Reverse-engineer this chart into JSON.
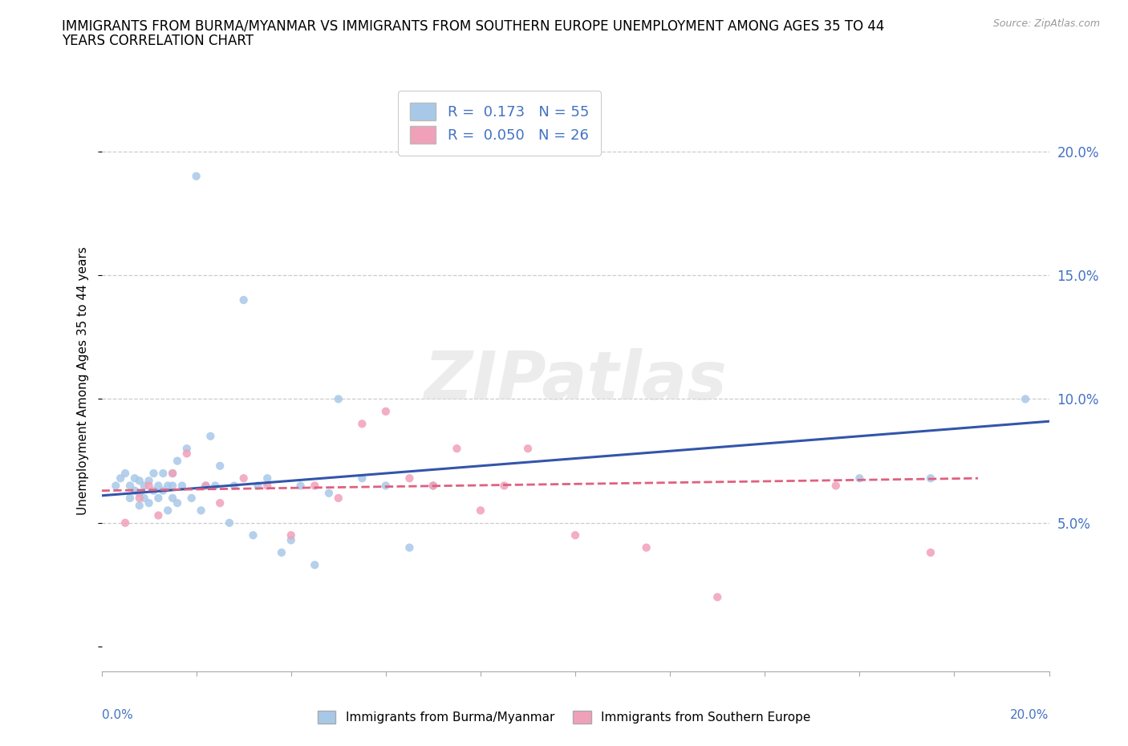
{
  "title_line1": "IMMIGRANTS FROM BURMA/MYANMAR VS IMMIGRANTS FROM SOUTHERN EUROPE UNEMPLOYMENT AMONG AGES 35 TO 44",
  "title_line2": "YEARS CORRELATION CHART",
  "source": "Source: ZipAtlas.com",
  "ylabel": "Unemployment Among Ages 35 to 44 years",
  "yticks_labels": [
    "5.0%",
    "10.0%",
    "15.0%",
    "20.0%"
  ],
  "ytick_vals": [
    0.05,
    0.1,
    0.15,
    0.2
  ],
  "xticks_labels": [
    "0.0%",
    "20.0%"
  ],
  "xlim": [
    0.0,
    0.2
  ],
  "ylim": [
    -0.01,
    0.225
  ],
  "color_blue": "#a8c8e8",
  "color_pink": "#f0a0b8",
  "line_blue": "#3355aa",
  "line_pink": "#e06080",
  "watermark": "ZIPatlas",
  "burma_trend_x0": 0.0,
  "burma_trend_x1": 0.2,
  "burma_trend_y0": 0.061,
  "burma_trend_y1": 0.091,
  "southern_trend_x0": 0.0,
  "southern_trend_x1": 0.185,
  "southern_trend_y0": 0.063,
  "southern_trend_y1": 0.068,
  "burma_x": [
    0.003,
    0.004,
    0.005,
    0.006,
    0.006,
    0.007,
    0.007,
    0.008,
    0.008,
    0.008,
    0.009,
    0.009,
    0.01,
    0.01,
    0.011,
    0.011,
    0.012,
    0.012,
    0.013,
    0.013,
    0.014,
    0.014,
    0.015,
    0.015,
    0.015,
    0.016,
    0.016,
    0.017,
    0.018,
    0.019,
    0.02,
    0.021,
    0.022,
    0.023,
    0.024,
    0.025,
    0.027,
    0.028,
    0.03,
    0.032,
    0.033,
    0.035,
    0.038,
    0.04,
    0.042,
    0.045,
    0.048,
    0.05,
    0.055,
    0.06,
    0.065,
    0.07,
    0.16,
    0.175,
    0.195
  ],
  "burma_y": [
    0.065,
    0.068,
    0.07,
    0.065,
    0.06,
    0.063,
    0.068,
    0.057,
    0.062,
    0.067,
    0.06,
    0.065,
    0.058,
    0.067,
    0.063,
    0.07,
    0.06,
    0.065,
    0.063,
    0.07,
    0.065,
    0.055,
    0.06,
    0.065,
    0.07,
    0.058,
    0.075,
    0.065,
    0.08,
    0.06,
    0.19,
    0.055,
    0.065,
    0.085,
    0.065,
    0.073,
    0.05,
    0.065,
    0.14,
    0.045,
    0.065,
    0.068,
    0.038,
    0.043,
    0.065,
    0.033,
    0.062,
    0.1,
    0.068,
    0.065,
    0.04,
    0.065,
    0.068,
    0.068,
    0.1
  ],
  "southern_x": [
    0.005,
    0.008,
    0.01,
    0.012,
    0.015,
    0.018,
    0.022,
    0.025,
    0.03,
    0.035,
    0.04,
    0.045,
    0.05,
    0.055,
    0.06,
    0.065,
    0.07,
    0.075,
    0.08,
    0.085,
    0.09,
    0.1,
    0.115,
    0.13,
    0.155,
    0.175
  ],
  "southern_y": [
    0.05,
    0.06,
    0.065,
    0.053,
    0.07,
    0.078,
    0.065,
    0.058,
    0.068,
    0.065,
    0.045,
    0.065,
    0.06,
    0.09,
    0.095,
    0.068,
    0.065,
    0.08,
    0.055,
    0.065,
    0.08,
    0.045,
    0.04,
    0.02,
    0.065,
    0.038
  ]
}
